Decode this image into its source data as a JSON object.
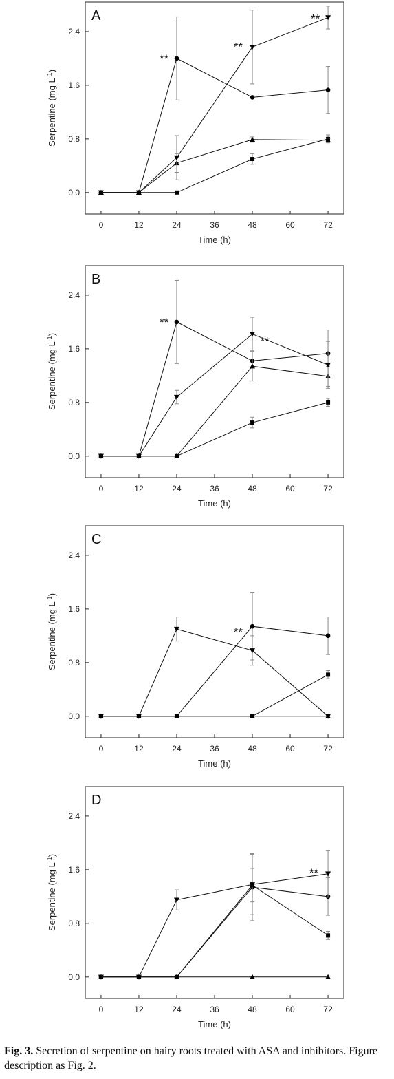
{
  "caption": {
    "label": "Fig. 3.",
    "text": "Secretion of serpentine on hairy roots treated with ASA and inhibitors. Figure description as Fig. 2."
  },
  "chart_data": [
    {
      "type": "line",
      "panel": "A",
      "xlabel": "Time (h)",
      "ylabel": "Serpentine (mg L",
      "ylabel_sup": "-1",
      "ylabel_end": ")",
      "x": [
        0,
        12,
        24,
        48,
        72
      ],
      "xticks": [
        "0",
        "12",
        "24",
        "36",
        "48",
        "60",
        "72"
      ],
      "yticks": [
        "0.0",
        "0.8",
        "1.6",
        "2.4"
      ],
      "xlim": [
        -5,
        77
      ],
      "ylim": [
        -0.32,
        2.84
      ],
      "series": [
        {
          "marker": "circle",
          "values": [
            0,
            0,
            2.0,
            1.42,
            1.53
          ],
          "errors": [
            0,
            0,
            0.62,
            0,
            0.35
          ]
        },
        {
          "marker": "square",
          "values": [
            0,
            0,
            0,
            0.5,
            0.8
          ],
          "errors": [
            0,
            0,
            0,
            0.08,
            0.06
          ]
        },
        {
          "marker": "triangle-up",
          "values": [
            0,
            0,
            0.44,
            0.79,
            0.78
          ],
          "errors": [
            0,
            0,
            0.14,
            0.04,
            0.03
          ]
        },
        {
          "marker": "triangle-down",
          "values": [
            0,
            0,
            0.52,
            2.17,
            2.61
          ],
          "errors": [
            0,
            0,
            0.33,
            0.55,
            0.17
          ]
        }
      ],
      "annotations": [
        {
          "text": "**",
          "x": 20,
          "y": 2.04
        },
        {
          "text": "**",
          "x": 43.5,
          "y": 2.22
        },
        {
          "text": "**",
          "x": 68,
          "y": 2.64
        }
      ]
    },
    {
      "type": "line",
      "panel": "B",
      "xlabel": "Time (h)",
      "ylabel": "Serpentine (mg L",
      "ylabel_sup": "-1",
      "ylabel_end": ")",
      "x": [
        0,
        12,
        24,
        48,
        72
      ],
      "xticks": [
        "0",
        "12",
        "24",
        "36",
        "48",
        "60",
        "72"
      ],
      "yticks": [
        "0.0",
        "0.8",
        "1.6",
        "2.4"
      ],
      "xlim": [
        -5,
        77
      ],
      "ylim": [
        -0.32,
        2.84
      ],
      "series": [
        {
          "marker": "circle",
          "values": [
            0,
            0,
            2.0,
            1.42,
            1.53
          ],
          "errors": [
            0,
            0,
            0.62,
            0,
            0.35
          ]
        },
        {
          "marker": "square",
          "values": [
            0,
            0,
            0,
            0.5,
            0.8
          ],
          "errors": [
            0,
            0,
            0,
            0.08,
            0.06
          ]
        },
        {
          "marker": "triangle-up",
          "values": [
            0,
            0,
            0,
            1.34,
            1.19
          ],
          "errors": [
            0,
            0,
            0,
            0.22,
            0.15
          ]
        },
        {
          "marker": "triangle-down",
          "values": [
            0,
            0,
            0.88,
            1.82,
            1.36
          ],
          "errors": [
            0,
            0,
            0.1,
            0.25,
            0.35
          ]
        }
      ],
      "annotations": [
        {
          "text": "**",
          "x": 20,
          "y": 2.04
        },
        {
          "text": "**",
          "x": 52,
          "y": 1.76
        }
      ]
    },
    {
      "type": "line",
      "panel": "C",
      "xlabel": "Time (h)",
      "ylabel": "Serpentine (mg L",
      "ylabel_sup": "-1",
      "ylabel_end": ")",
      "x": [
        0,
        12,
        24,
        48,
        72
      ],
      "xticks": [
        "0",
        "12",
        "24",
        "36",
        "48",
        "60",
        "72"
      ],
      "yticks": [
        "0.0",
        "0.8",
        "1.6",
        "2.4"
      ],
      "xlim": [
        -5,
        77
      ],
      "ylim": [
        -0.32,
        2.84
      ],
      "series": [
        {
          "marker": "circle",
          "values": [
            0,
            0,
            0,
            1.34,
            1.2
          ],
          "errors": [
            0,
            0,
            0,
            0.5,
            0.28
          ]
        },
        {
          "marker": "square",
          "values": [
            0,
            0,
            0,
            0,
            0.62
          ],
          "errors": [
            0,
            0,
            0,
            0,
            0.06
          ]
        },
        {
          "marker": "triangle-up",
          "values": [
            0,
            0,
            0,
            0,
            0
          ],
          "errors": [
            0,
            0,
            0,
            0,
            0
          ]
        },
        {
          "marker": "triangle-down",
          "values": [
            0,
            0,
            1.3,
            0.98,
            0
          ],
          "errors": [
            0,
            0,
            0.18,
            0.22,
            0
          ]
        }
      ],
      "annotations": [
        {
          "text": "**",
          "x": 43.5,
          "y": 1.3
        }
      ]
    },
    {
      "type": "line",
      "panel": "D",
      "xlabel": "Time (h)",
      "ylabel": "Serpentine (mg L",
      "ylabel_sup": "-1",
      "ylabel_end": ")",
      "x": [
        0,
        12,
        24,
        48,
        72
      ],
      "xticks": [
        "0",
        "12",
        "24",
        "36",
        "48",
        "60",
        "72"
      ],
      "yticks": [
        "0.0",
        "0.8",
        "1.6",
        "2.4"
      ],
      "xlim": [
        -5,
        77
      ],
      "ylim": [
        -0.32,
        2.84
      ],
      "series": [
        {
          "marker": "circle",
          "values": [
            0,
            0,
            0,
            1.34,
            1.2
          ],
          "errors": [
            0,
            0,
            0,
            0.5,
            0.28
          ]
        },
        {
          "marker": "square",
          "values": [
            0,
            0,
            0,
            1.37,
            0.62
          ],
          "errors": [
            0,
            0,
            0,
            0.25,
            0.06
          ]
        },
        {
          "marker": "triangle-up",
          "values": [
            0,
            0,
            0,
            0,
            0
          ],
          "errors": [
            0,
            0,
            0,
            0,
            0
          ]
        },
        {
          "marker": "triangle-down",
          "values": [
            0,
            0,
            1.15,
            1.38,
            1.54
          ],
          "errors": [
            0,
            0,
            0.15,
            0.45,
            0.35
          ]
        }
      ],
      "annotations": [
        {
          "text": "**",
          "x": 67.5,
          "y": 1.6
        }
      ]
    }
  ]
}
